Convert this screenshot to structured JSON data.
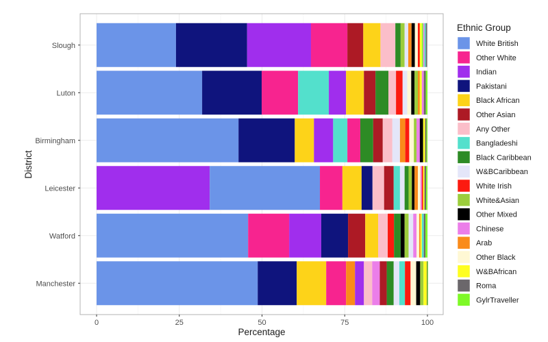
{
  "chart_data": {
    "type": "bar",
    "orientation": "horizontal",
    "stacked": true,
    "title": "",
    "xlabel": "Percentage",
    "ylabel": "District",
    "xlim": [
      0,
      100
    ],
    "xticks": [
      "0",
      "25",
      "50",
      "75",
      "100"
    ],
    "xtick_values": [
      0,
      25,
      50,
      75,
      100
    ],
    "grid": true,
    "legend": {
      "title": "Ethnic Group",
      "placement": "right"
    },
    "groups": [
      {
        "name": "White British",
        "color": "#6b94e8"
      },
      {
        "name": "Other White",
        "color": "#f7248f"
      },
      {
        "name": "Indian",
        "color": "#a02eed"
      },
      {
        "name": "Pakistani",
        "color": "#0f147d"
      },
      {
        "name": "Black African",
        "color": "#fdd319"
      },
      {
        "name": "Other Asian",
        "color": "#ad1a25"
      },
      {
        "name": "Any Other",
        "color": "#fbbec9"
      },
      {
        "name": "Bangladeshi",
        "color": "#53e0cc"
      },
      {
        "name": "Black Caribbean",
        "color": "#2d8b25"
      },
      {
        "name": "W&BCaribbean",
        "color": "#e4e6f9"
      },
      {
        "name": "White Irish",
        "color": "#fc1a10"
      },
      {
        "name": "White&Asian",
        "color": "#9ccd3c"
      },
      {
        "name": "Other Mixed",
        "color": "#000000"
      },
      {
        "name": "Chinese",
        "color": "#eb7ee9"
      },
      {
        "name": "Arab",
        "color": "#fa8b1a"
      },
      {
        "name": "Other Black",
        "color": "#fff8d4"
      },
      {
        "name": "W&BAfrican",
        "color": "#fefe20"
      },
      {
        "name": "Roma",
        "color": "#6b676b"
      },
      {
        "name": "GylrTraveller",
        "color": "#7ef927"
      }
    ],
    "categories": [
      "Slough",
      "Luton",
      "Birmingham",
      "Leicester",
      "Watford",
      "Manchester"
    ],
    "series": [
      {
        "category": "Slough",
        "segments": [
          {
            "group": "White British",
            "value": 24.0
          },
          {
            "group": "Pakistani",
            "value": 21.5
          },
          {
            "group": "Indian",
            "value": 19.3
          },
          {
            "group": "Other White",
            "value": 11.0
          },
          {
            "group": "Other Asian",
            "value": 4.8
          },
          {
            "group": "Black African",
            "value": 5.2
          },
          {
            "group": "Any Other",
            "value": 4.5
          },
          {
            "group": "Black Caribbean",
            "value": 1.6
          },
          {
            "group": "White&Asian",
            "value": 1.2
          },
          {
            "group": "W&BCaribbean",
            "value": 1.1
          },
          {
            "group": "Arab",
            "value": 1.0
          },
          {
            "group": "Other Mixed",
            "value": 1.0
          },
          {
            "group": "Other Black",
            "value": 0.9
          },
          {
            "group": "White Irish",
            "value": 0.6
          },
          {
            "group": "W&BAfrican",
            "value": 0.6
          },
          {
            "group": "GylrTraveller",
            "value": 0.4
          },
          {
            "group": "Chinese",
            "value": 0.4
          },
          {
            "group": "Bangladeshi",
            "value": 0.4
          },
          {
            "group": "Roma",
            "value": 0.4
          }
        ]
      },
      {
        "category": "Luton",
        "segments": [
          {
            "group": "White British",
            "value": 31.9
          },
          {
            "group": "Pakistani",
            "value": 18.0
          },
          {
            "group": "Other White",
            "value": 11.0
          },
          {
            "group": "Bangladeshi",
            "value": 9.3
          },
          {
            "group": "Indian",
            "value": 5.2
          },
          {
            "group": "Black African",
            "value": 5.4
          },
          {
            "group": "Other Asian",
            "value": 3.5
          },
          {
            "group": "Black Caribbean",
            "value": 3.9
          },
          {
            "group": "Any Other",
            "value": 2.3
          },
          {
            "group": "White Irish",
            "value": 2.0
          },
          {
            "group": "W&BCaribbean",
            "value": 1.4
          },
          {
            "group": "Other Black",
            "value": 1.2
          },
          {
            "group": "Other Mixed",
            "value": 1.0
          },
          {
            "group": "White&Asian",
            "value": 1.0
          },
          {
            "group": "Arab",
            "value": 0.6
          },
          {
            "group": "W&BAfrican",
            "value": 0.6
          },
          {
            "group": "Chinese",
            "value": 0.6
          },
          {
            "group": "Roma",
            "value": 0.6
          },
          {
            "group": "GylrTraveller",
            "value": 0.5
          }
        ]
      },
      {
        "category": "Birmingham",
        "segments": [
          {
            "group": "White British",
            "value": 42.9
          },
          {
            "group": "Pakistani",
            "value": 17.0
          },
          {
            "group": "Black African",
            "value": 5.8
          },
          {
            "group": "Indian",
            "value": 5.8
          },
          {
            "group": "Bangladeshi",
            "value": 4.3
          },
          {
            "group": "Other White",
            "value": 3.9
          },
          {
            "group": "Black Caribbean",
            "value": 3.9
          },
          {
            "group": "Other Asian",
            "value": 2.9
          },
          {
            "group": "Any Other",
            "value": 2.9
          },
          {
            "group": "W&BCaribbean",
            "value": 2.3
          },
          {
            "group": "Arab",
            "value": 1.6
          },
          {
            "group": "White Irish",
            "value": 1.2
          },
          {
            "group": "Other Black",
            "value": 1.4
          },
          {
            "group": "White&Asian",
            "value": 0.8
          },
          {
            "group": "Chinese",
            "value": 1.0
          },
          {
            "group": "Other Mixed",
            "value": 1.0
          },
          {
            "group": "W&BAfrican",
            "value": 0.6
          },
          {
            "group": "Roma",
            "value": 0.4
          },
          {
            "group": "GylrTraveller",
            "value": 0.3
          }
        ]
      },
      {
        "category": "Leicester",
        "segments": [
          {
            "group": "Indian",
            "value": 34.2
          },
          {
            "group": "White British",
            "value": 33.3
          },
          {
            "group": "Other White",
            "value": 6.8
          },
          {
            "group": "Black African",
            "value": 5.8
          },
          {
            "group": "Pakistani",
            "value": 3.3
          },
          {
            "group": "Any Other",
            "value": 3.5
          },
          {
            "group": "Other Asian",
            "value": 2.9
          },
          {
            "group": "Bangladeshi",
            "value": 1.9
          },
          {
            "group": "W&BCaribbean",
            "value": 1.4
          },
          {
            "group": "Black Caribbean",
            "value": 1.2
          },
          {
            "group": "White&Asian",
            "value": 1.0
          },
          {
            "group": "Other Mixed",
            "value": 0.8
          },
          {
            "group": "Arab",
            "value": 1.0
          },
          {
            "group": "Other Black",
            "value": 0.8
          },
          {
            "group": "Chinese",
            "value": 0.4
          },
          {
            "group": "White Irish",
            "value": 0.4
          },
          {
            "group": "W&BAfrican",
            "value": 0.4
          },
          {
            "group": "Roma",
            "value": 0.5
          },
          {
            "group": "GylrTraveller",
            "value": 0.4
          }
        ]
      },
      {
        "category": "Watford",
        "segments": [
          {
            "group": "White British",
            "value": 45.8
          },
          {
            "group": "Other White",
            "value": 12.4
          },
          {
            "group": "Indian",
            "value": 9.7
          },
          {
            "group": "Pakistani",
            "value": 8.1
          },
          {
            "group": "Other Asian",
            "value": 5.2
          },
          {
            "group": "Black African",
            "value": 3.9
          },
          {
            "group": "Any Other",
            "value": 2.9
          },
          {
            "group": "White Irish",
            "value": 1.9
          },
          {
            "group": "Black Caribbean",
            "value": 2.0
          },
          {
            "group": "Other Mixed",
            "value": 1.2
          },
          {
            "group": "White&Asian",
            "value": 1.2
          },
          {
            "group": "W&BCaribbean",
            "value": 1.4
          },
          {
            "group": "Chinese",
            "value": 1.0
          },
          {
            "group": "Other Black",
            "value": 0.8
          },
          {
            "group": "Arab",
            "value": 0.4
          },
          {
            "group": "W&BAfrican",
            "value": 0.4
          },
          {
            "group": "Bangladeshi",
            "value": 0.6
          },
          {
            "group": "Roma",
            "value": 0.5
          },
          {
            "group": "GylrTraveller",
            "value": 0.6
          }
        ]
      },
      {
        "category": "Manchester",
        "segments": [
          {
            "group": "White British",
            "value": 48.7
          },
          {
            "group": "Pakistani",
            "value": 11.8
          },
          {
            "group": "Black African",
            "value": 8.9
          },
          {
            "group": "Other White",
            "value": 6.0
          },
          {
            "group": "Arab",
            "value": 2.7
          },
          {
            "group": "Indian",
            "value": 2.7
          },
          {
            "group": "Any Other",
            "value": 2.5
          },
          {
            "group": "Chinese",
            "value": 2.3
          },
          {
            "group": "Other Asian",
            "value": 2.1
          },
          {
            "group": "Black Caribbean",
            "value": 2.1
          },
          {
            "group": "W&BCaribbean",
            "value": 1.7
          },
          {
            "group": "Bangladeshi",
            "value": 1.7
          },
          {
            "group": "White Irish",
            "value": 1.7
          },
          {
            "group": "Other Black",
            "value": 1.7
          },
          {
            "group": "Other Mixed",
            "value": 1.2
          },
          {
            "group": "White&Asian",
            "value": 1.0
          },
          {
            "group": "W&BAfrican",
            "value": 1.0
          },
          {
            "group": "Roma",
            "value": 0.2
          },
          {
            "group": "GylrTraveller",
            "value": 0.2
          }
        ]
      }
    ]
  }
}
